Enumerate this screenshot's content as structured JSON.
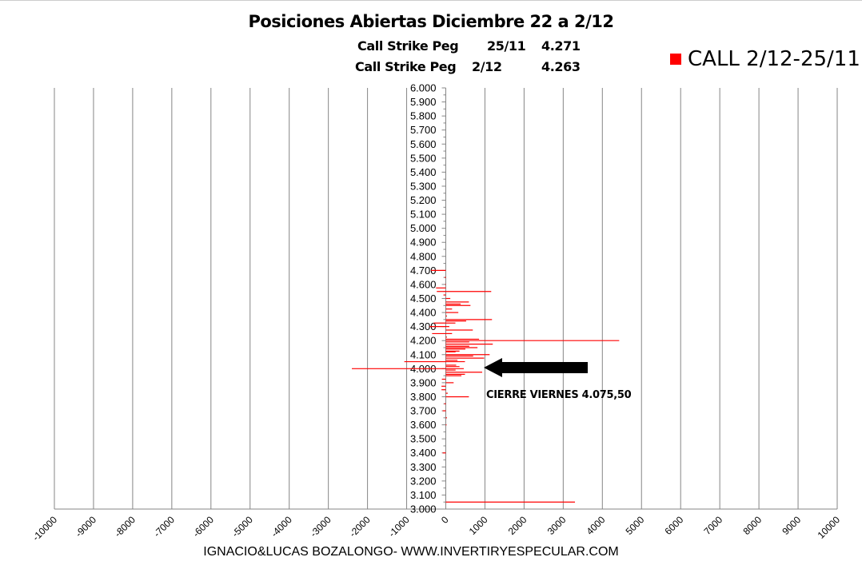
{
  "chart_data": {
    "type": "bar",
    "orientation": "horizontal",
    "title": "Posiciones Abiertas Diciembre 22 a 2/12",
    "subtitle_lines": [
      {
        "label": "Call Strike Peg",
        "date": "25/11",
        "value": "4.271"
      },
      {
        "label": "Call Strike Peg",
        "date": "2/12",
        "value": "4.263"
      }
    ],
    "legend": [
      {
        "name": "CALL 2/12-25/11",
        "color": "#ff0000"
      }
    ],
    "legend_position": "top-right",
    "xlim": [
      -10000,
      10000
    ],
    "x_ticks": [
      "-10000",
      "-9000",
      "-8000",
      "-7000",
      "-6000",
      "-5000",
      "-4000",
      "-3000",
      "-2000",
      "-1000",
      "0",
      "1000",
      "2000",
      "3000",
      "4000",
      "5000",
      "6000",
      "7000",
      "8000",
      "9000",
      "10000"
    ],
    "ylim": [
      3000,
      6000
    ],
    "y_ticks": [
      "3.000",
      "3.100",
      "3.200",
      "3.300",
      "3.400",
      "3.500",
      "3.600",
      "3.700",
      "3.800",
      "3.900",
      "4.000",
      "4.100",
      "4.200",
      "4.300",
      "4.400",
      "4.500",
      "4.600",
      "4.700",
      "4.800",
      "4.900",
      "5.000",
      "5.100",
      "5.200",
      "5.300",
      "5.400",
      "5.500",
      "5.600",
      "5.700",
      "5.800",
      "5.900",
      "6.000"
    ],
    "grid": "vertical",
    "series": [
      {
        "name": "CALL 2/12-25/11",
        "color": "#ff0000",
        "points": [
          [
            4700,
            -380
          ],
          [
            4650,
            -30
          ],
          [
            4600,
            -20
          ],
          [
            4575,
            -250
          ],
          [
            4550,
            1160
          ],
          [
            4550,
            -230
          ],
          [
            4525,
            -60
          ],
          [
            4500,
            115
          ],
          [
            4475,
            590
          ],
          [
            4460,
            380
          ],
          [
            4450,
            630
          ],
          [
            4425,
            160
          ],
          [
            4400,
            320
          ],
          [
            4375,
            30
          ],
          [
            4350,
            1180
          ],
          [
            4340,
            520
          ],
          [
            4325,
            -310
          ],
          [
            4325,
            245
          ],
          [
            4300,
            -415
          ],
          [
            4300,
            90
          ],
          [
            4275,
            690
          ],
          [
            4250,
            -350
          ],
          [
            4250,
            160
          ],
          [
            4225,
            30
          ],
          [
            4210,
            850
          ],
          [
            4200,
            4430
          ],
          [
            4190,
            600
          ],
          [
            4175,
            1200
          ],
          [
            4160,
            600
          ],
          [
            4150,
            810
          ],
          [
            4140,
            500
          ],
          [
            4125,
            350
          ],
          [
            4120,
            250
          ],
          [
            4100,
            1120
          ],
          [
            4090,
            700
          ],
          [
            4075,
            980
          ],
          [
            4060,
            300
          ],
          [
            4050,
            -1060
          ],
          [
            4050,
            490
          ],
          [
            4025,
            265
          ],
          [
            4015,
            350
          ],
          [
            4000,
            -2400
          ],
          [
            4000,
            460
          ],
          [
            3990,
            250
          ],
          [
            3975,
            930
          ],
          [
            3960,
            490
          ],
          [
            3950,
            400
          ],
          [
            3925,
            -100
          ],
          [
            3900,
            200
          ],
          [
            3875,
            -110
          ],
          [
            3850,
            -110
          ],
          [
            3825,
            50
          ],
          [
            3800,
            590
          ],
          [
            3750,
            -40
          ],
          [
            3700,
            -80
          ],
          [
            3650,
            30
          ],
          [
            3600,
            20
          ],
          [
            3400,
            -80
          ],
          [
            3050,
            3300
          ]
        ]
      }
    ],
    "annotation": {
      "text": "CIERRE VIERNES 4.075,50",
      "arrow_at": 4025
    }
  },
  "footer": "IGNACIO&LUCAS BOZALONGO- WWW.INVERTIRYESPECULAR.COM"
}
